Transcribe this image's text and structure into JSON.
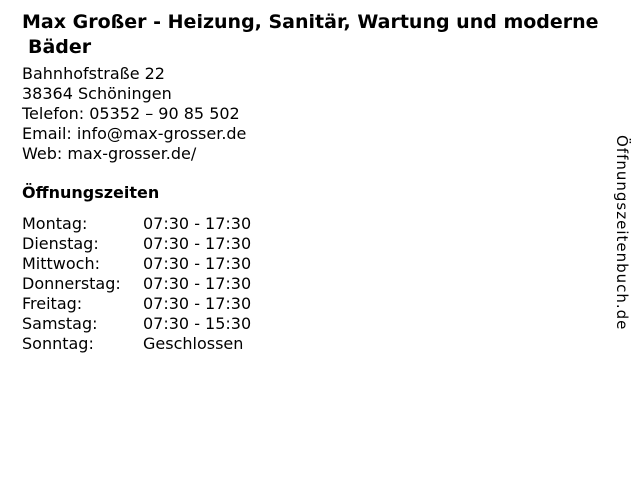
{
  "header": {
    "title_line1": "Max Großer - Heizung, Sanitär, Wartung und moderne",
    "title_line2": "Bäder"
  },
  "contact": {
    "street": "Bahnhofstraße 22",
    "city": "38364 Schöningen",
    "phone_label": "Telefon:",
    "phone_value": "05352 – 90 85 502",
    "email_label": "Email:",
    "email_value": "info@max-grosser.de",
    "web_label": "Web:",
    "web_value": "max-grosser.de/"
  },
  "opening_hours": {
    "heading": "Öffnungszeiten",
    "rows": [
      {
        "day": "Montag:",
        "hours": "07:30 - 17:30"
      },
      {
        "day": "Dienstag:",
        "hours": "07:30 - 17:30"
      },
      {
        "day": "Mittwoch:",
        "hours": "07:30 - 17:30"
      },
      {
        "day": "Donnerstag:",
        "hours": "07:30 - 17:30"
      },
      {
        "day": "Freitag:",
        "hours": "07:30 - 17:30"
      },
      {
        "day": "Samstag:",
        "hours": "07:30 - 15:30"
      },
      {
        "day": "Sonntag:",
        "hours": "Geschlossen"
      }
    ]
  },
  "watermark": {
    "text": "Öffnungszeitenbuch.de"
  },
  "colors": {
    "text": "#000000",
    "background": "#ffffff"
  }
}
